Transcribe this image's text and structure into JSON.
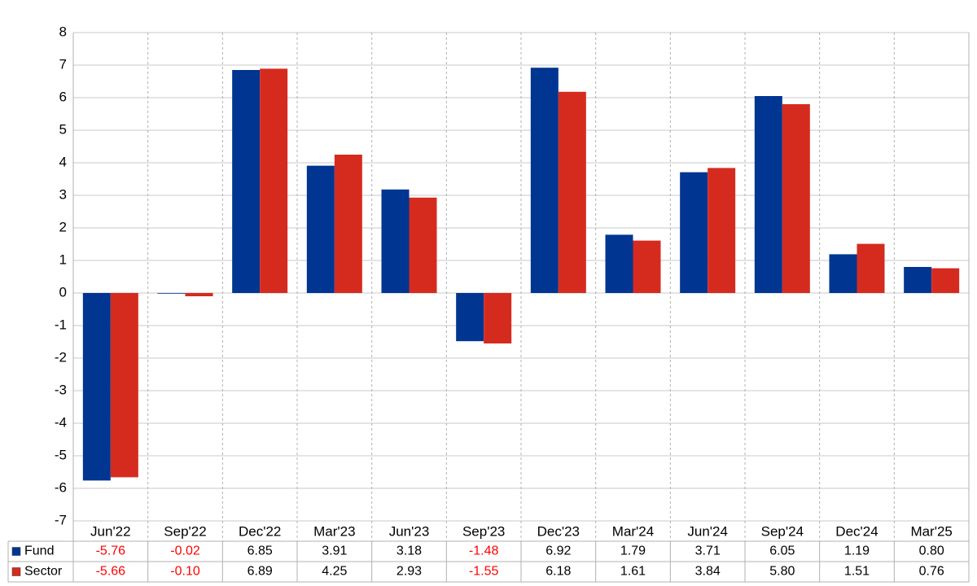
{
  "chart_data": {
    "type": "bar",
    "categories": [
      "Jun'22",
      "Sep'22",
      "Dec'22",
      "Mar'23",
      "Jun'23",
      "Sep'23",
      "Dec'23",
      "Mar'24",
      "Jun'24",
      "Sep'24",
      "Dec'24",
      "Mar'25"
    ],
    "series": [
      {
        "name": "Fund",
        "color": "#003591",
        "values": [
          -5.76,
          -0.02,
          6.85,
          3.91,
          3.18,
          -1.48,
          6.92,
          1.79,
          3.71,
          6.05,
          1.19,
          0.8
        ],
        "value_labels": [
          "-5.76",
          "-0.02",
          "6.85",
          "3.91",
          "3.18",
          "-1.48",
          "6.92",
          "1.79",
          "3.71",
          "6.05",
          "1.19",
          "0.80"
        ]
      },
      {
        "name": "Sector",
        "color": "#d52b1e",
        "values": [
          -5.66,
          -0.1,
          6.89,
          4.25,
          2.93,
          -1.55,
          6.18,
          1.61,
          3.84,
          5.8,
          1.51,
          0.76
        ],
        "value_labels": [
          "-5.66",
          "-0.10",
          "6.89",
          "4.25",
          "2.93",
          "-1.55",
          "6.18",
          "1.61",
          "3.84",
          "5.80",
          "1.51",
          "0.76"
        ]
      }
    ],
    "ylim": [
      -7,
      8
    ],
    "yticks": [
      -7,
      -6,
      -5,
      -4,
      -3,
      -2,
      -1,
      0,
      1,
      2,
      3,
      4,
      5,
      6,
      7,
      8
    ],
    "grid": true,
    "negative_label_color": "#ff0000"
  }
}
